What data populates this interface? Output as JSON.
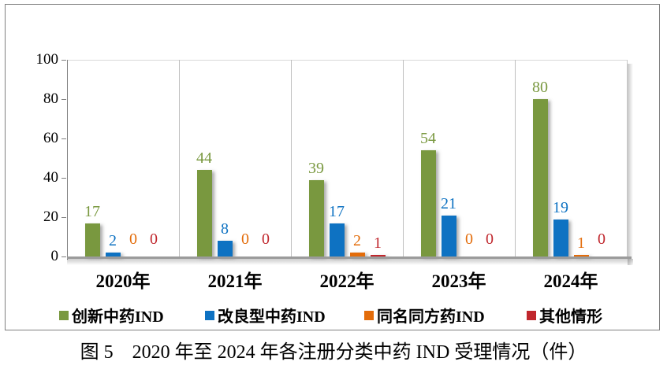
{
  "caption": "图 5　2020 年至 2024 年各注册分类中药 IND 受理情况（件）",
  "chart_data": {
    "type": "bar",
    "title": "",
    "xlabel": "",
    "ylabel": "",
    "categories": [
      "2020年",
      "2021年",
      "2022年",
      "2023年",
      "2024年"
    ],
    "series": [
      {
        "name": "创新中药IND",
        "color": "#79983F",
        "values": [
          17,
          44,
          39,
          54,
          80
        ]
      },
      {
        "name": "改良型中药IND",
        "color": "#0E72C2",
        "values": [
          2,
          8,
          17,
          21,
          19
        ]
      },
      {
        "name": "同名同方药IND",
        "color": "#E36C0A",
        "values": [
          0,
          0,
          2,
          0,
          1
        ]
      },
      {
        "name": "其他情形",
        "color": "#C0272D",
        "values": [
          0,
          0,
          1,
          0,
          0
        ]
      }
    ],
    "ylim": [
      0,
      100
    ],
    "yticks": [
      0,
      20,
      40,
      60,
      80,
      100
    ],
    "grid": "vertical category separators only",
    "legend_position": "bottom",
    "value_labels": "shown above each bar in series color, zeros shown near baseline"
  }
}
